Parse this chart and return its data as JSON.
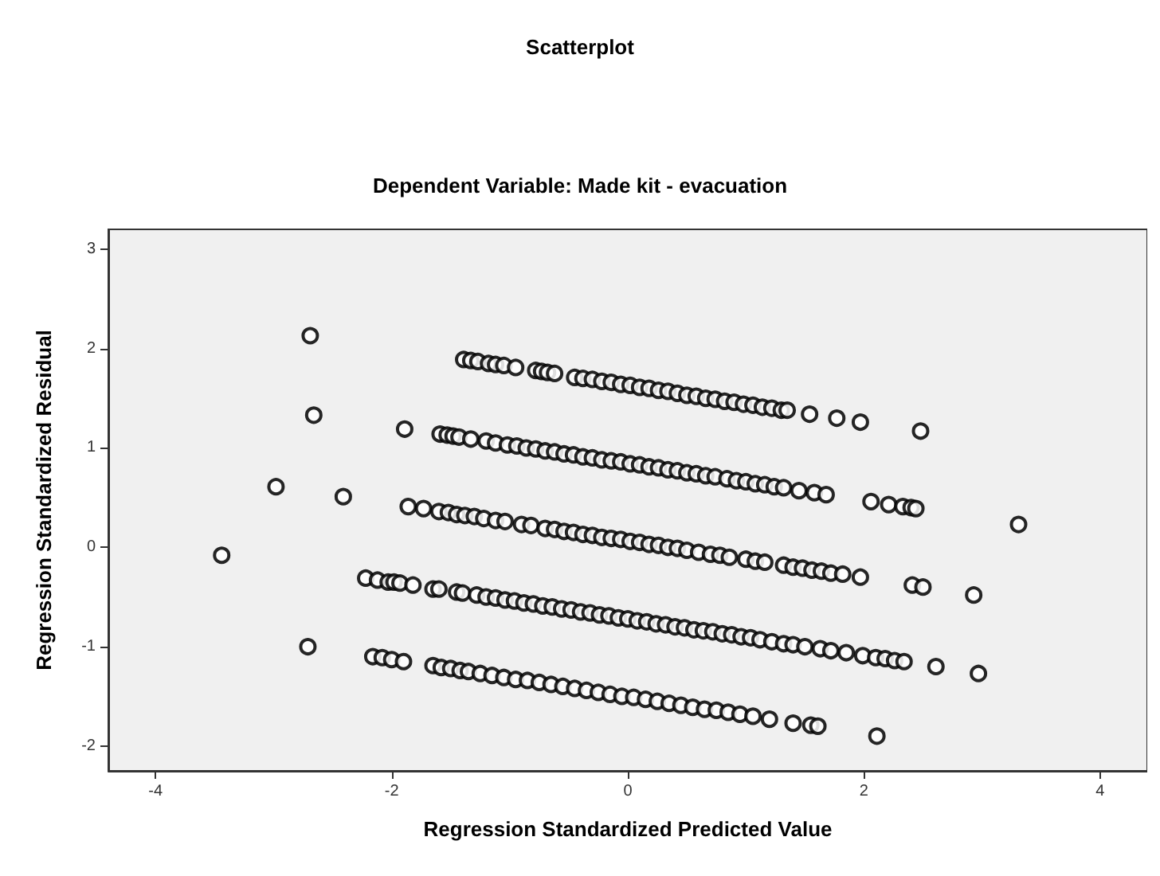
{
  "chart_data": {
    "type": "scatter",
    "title": "Scatterplot",
    "subtitle": "Dependent Variable: Made kit - evacuation",
    "xlabel": "Regression Standardized Predicted Value",
    "ylabel": "Regression Standardized Residual",
    "xlim": [
      -4.4,
      4.4
    ],
    "ylim": [
      -2.25,
      3.2
    ],
    "xticks": [
      -4,
      -2,
      0,
      2,
      4
    ],
    "yticks": [
      -2,
      -1,
      0,
      1,
      2,
      3
    ],
    "grid": false,
    "marker": "circle",
    "series": [
      {
        "color": "#000000",
        "x": [
          -2.69,
          -2.66,
          -2.98,
          -2.41,
          -3.44,
          -2.71,
          -1.89,
          -1.39,
          -1.33,
          -1.27,
          -1.18,
          -1.12,
          -1.05,
          -0.95,
          -0.78,
          -0.73,
          -0.68,
          -0.62,
          -0.45,
          -0.38,
          -0.3,
          -0.22,
          -0.14,
          -0.06,
          0.02,
          0.1,
          0.18,
          0.26,
          0.34,
          0.42,
          0.5,
          0.58,
          0.66,
          0.74,
          0.82,
          0.9,
          0.98,
          1.06,
          1.14,
          1.22,
          1.3,
          1.35,
          1.54,
          1.77,
          1.97,
          2.48,
          -1.59,
          -1.53,
          -1.48,
          -1.43,
          -1.33,
          -1.2,
          -1.12,
          -1.02,
          -0.94,
          -0.86,
          -0.78,
          -0.7,
          -0.62,
          -0.54,
          -0.46,
          -0.38,
          -0.3,
          -0.22,
          -0.14,
          -0.06,
          0.02,
          0.1,
          0.18,
          0.26,
          0.34,
          0.42,
          0.5,
          0.58,
          0.66,
          0.74,
          0.84,
          0.92,
          1.0,
          1.08,
          1.16,
          1.24,
          1.32,
          1.45,
          1.58,
          1.68,
          2.06,
          2.21,
          2.33,
          2.4,
          2.44,
          3.31,
          -1.86,
          -1.73,
          -1.6,
          -1.52,
          -1.45,
          -1.38,
          -1.3,
          -1.22,
          -1.12,
          -1.04,
          -0.9,
          -0.82,
          -0.7,
          -0.62,
          -0.54,
          -0.46,
          -0.38,
          -0.3,
          -0.22,
          -0.14,
          -0.06,
          0.02,
          0.1,
          0.18,
          0.26,
          0.34,
          0.42,
          0.5,
          0.6,
          0.7,
          0.78,
          0.86,
          1.0,
          1.08,
          1.16,
          1.32,
          1.4,
          1.48,
          1.56,
          1.64,
          1.72,
          1.82,
          1.97,
          2.41,
          2.5,
          2.93,
          -2.22,
          -2.12,
          -2.03,
          -1.98,
          -1.93,
          -1.82,
          -1.65,
          -1.6,
          -1.45,
          -1.4,
          -1.28,
          -1.2,
          -1.12,
          -1.04,
          -0.96,
          -0.88,
          -0.8,
          -0.72,
          -0.64,
          -0.56,
          -0.48,
          -0.4,
          -0.32,
          -0.24,
          -0.16,
          -0.08,
          0.0,
          0.08,
          0.16,
          0.24,
          0.32,
          0.4,
          0.48,
          0.56,
          0.64,
          0.72,
          0.8,
          0.88,
          0.96,
          1.04,
          1.12,
          1.22,
          1.32,
          1.4,
          1.5,
          1.63,
          1.72,
          1.85,
          1.99,
          2.1,
          2.18,
          2.26,
          2.34,
          2.61,
          2.97,
          -2.16,
          -2.08,
          -2.0,
          -1.9,
          -1.65,
          -1.58,
          -1.5,
          -1.42,
          -1.35,
          -1.25,
          -1.15,
          -1.05,
          -0.95,
          -0.85,
          -0.75,
          -0.65,
          -0.55,
          -0.45,
          -0.35,
          -0.25,
          -0.15,
          -0.05,
          0.05,
          0.15,
          0.25,
          0.35,
          0.45,
          0.55,
          0.65,
          0.75,
          0.85,
          0.95,
          1.06,
          1.2,
          1.4,
          1.55,
          1.61,
          2.11
        ],
        "values": [
          2.13,
          1.33,
          0.61,
          0.51,
          -0.08,
          -1.0,
          1.19,
          1.89,
          1.88,
          1.87,
          1.85,
          1.84,
          1.83,
          1.81,
          1.78,
          1.77,
          1.76,
          1.75,
          1.71,
          1.7,
          1.69,
          1.67,
          1.66,
          1.64,
          1.63,
          1.61,
          1.6,
          1.58,
          1.57,
          1.55,
          1.53,
          1.52,
          1.5,
          1.49,
          1.47,
          1.46,
          1.44,
          1.43,
          1.41,
          1.4,
          1.38,
          1.38,
          1.34,
          1.3,
          1.26,
          1.17,
          1.14,
          1.13,
          1.12,
          1.11,
          1.09,
          1.07,
          1.05,
          1.03,
          1.02,
          1.0,
          0.99,
          0.97,
          0.96,
          0.94,
          0.93,
          0.91,
          0.9,
          0.88,
          0.87,
          0.86,
          0.84,
          0.83,
          0.81,
          0.8,
          0.78,
          0.77,
          0.75,
          0.74,
          0.72,
          0.71,
          0.69,
          0.67,
          0.66,
          0.64,
          0.63,
          0.61,
          0.6,
          0.57,
          0.55,
          0.53,
          0.46,
          0.43,
          0.41,
          0.4,
          0.39,
          0.23,
          0.41,
          0.39,
          0.36,
          0.35,
          0.33,
          0.32,
          0.31,
          0.29,
          0.27,
          0.26,
          0.23,
          0.22,
          0.19,
          0.18,
          0.16,
          0.15,
          0.13,
          0.12,
          0.1,
          0.09,
          0.08,
          0.06,
          0.05,
          0.03,
          0.02,
          0.0,
          -0.01,
          -0.03,
          -0.05,
          -0.07,
          -0.08,
          -0.1,
          -0.12,
          -0.14,
          -0.15,
          -0.18,
          -0.2,
          -0.21,
          -0.23,
          -0.24,
          -0.26,
          -0.27,
          -0.3,
          -0.38,
          -0.4,
          -0.48,
          -0.31,
          -0.33,
          -0.35,
          -0.35,
          -0.36,
          -0.38,
          -0.42,
          -0.42,
          -0.45,
          -0.46,
          -0.48,
          -0.5,
          -0.51,
          -0.53,
          -0.54,
          -0.56,
          -0.57,
          -0.59,
          -0.6,
          -0.62,
          -0.63,
          -0.65,
          -0.66,
          -0.68,
          -0.69,
          -0.71,
          -0.72,
          -0.74,
          -0.75,
          -0.77,
          -0.78,
          -0.8,
          -0.81,
          -0.83,
          -0.84,
          -0.85,
          -0.87,
          -0.88,
          -0.9,
          -0.91,
          -0.93,
          -0.95,
          -0.97,
          -0.98,
          -1.0,
          -1.02,
          -1.04,
          -1.06,
          -1.09,
          -1.11,
          -1.12,
          -1.14,
          -1.15,
          -1.2,
          -1.27,
          -1.1,
          -1.11,
          -1.13,
          -1.15,
          -1.19,
          -1.21,
          -1.22,
          -1.24,
          -1.25,
          -1.27,
          -1.29,
          -1.31,
          -1.33,
          -1.34,
          -1.36,
          -1.38,
          -1.4,
          -1.42,
          -1.44,
          -1.46,
          -1.48,
          -1.5,
          -1.51,
          -1.53,
          -1.55,
          -1.57,
          -1.59,
          -1.61,
          -1.63,
          -1.64,
          -1.66,
          -1.68,
          -1.7,
          -1.73,
          -1.77,
          -1.79,
          -1.8,
          -1.9
        ]
      }
    ]
  }
}
